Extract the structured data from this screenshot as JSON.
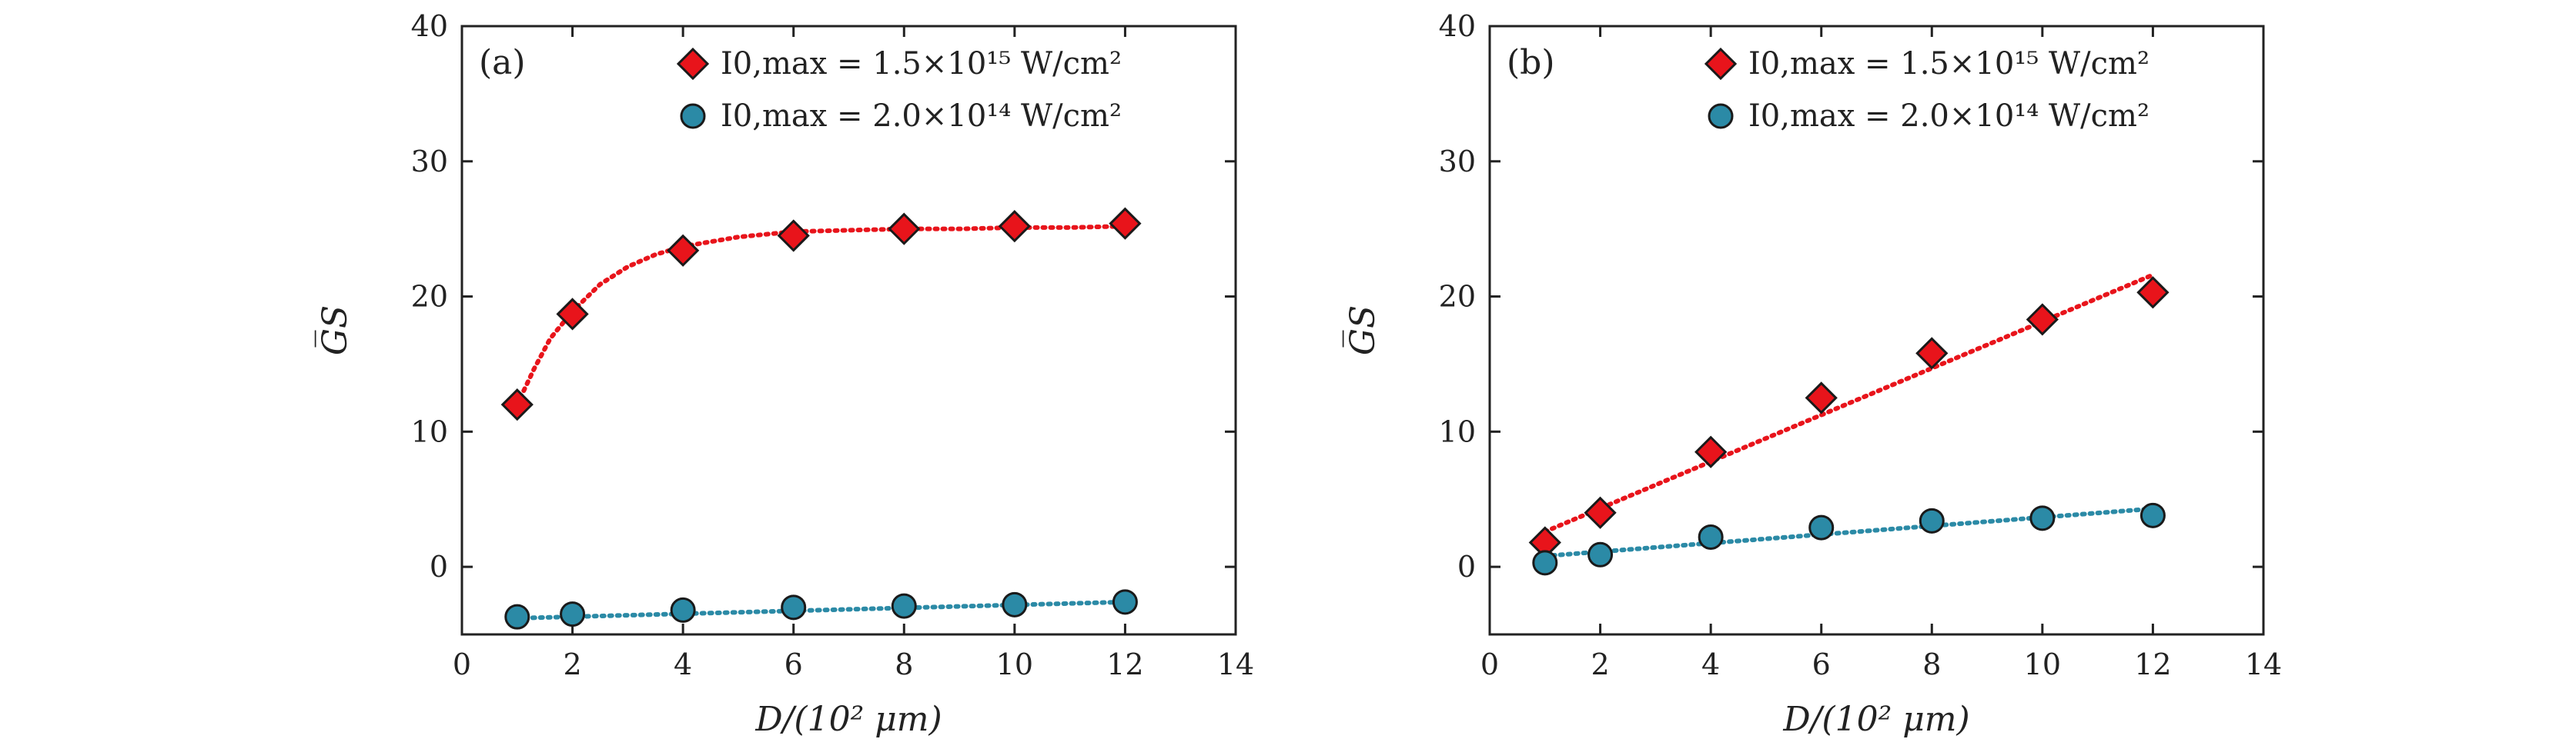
{
  "chart_data": [
    {
      "type": "scatter",
      "panel_label": "(a)",
      "xlabel": "D/(10² μm)",
      "ylabel": "G̅S",
      "xlim": [
        0,
        14
      ],
      "ylim": [
        -5,
        40
      ],
      "xticks": [
        0,
        2,
        4,
        6,
        8,
        10,
        12,
        14
      ],
      "yticks": [
        0,
        10,
        20,
        30,
        40
      ],
      "legend_position": "top-right",
      "series": [
        {
          "name": "I0,max = 1.5×10^15 W/cm^2",
          "legend_label": "I0,max = 1.5×10¹⁵ W/cm²",
          "marker": "diamond",
          "color": "#e8141b",
          "fit_color": "#e8141b",
          "x": [
            1,
            2,
            4,
            6,
            8,
            10,
            12
          ],
          "y": [
            12.0,
            18.7,
            23.4,
            24.5,
            25.0,
            25.2,
            25.4
          ],
          "fit": {
            "type": "saturating",
            "x": [
              1,
              1.3,
              1.6,
              2,
              2.5,
              3,
              3.5,
              4,
              5,
              6,
              7,
              8,
              9,
              10,
              11,
              12
            ],
            "y": [
              12.0,
              14.6,
              16.9,
              18.9,
              20.9,
              22.2,
              23.1,
              23.7,
              24.4,
              24.8,
              24.9,
              25.0,
              25.0,
              25.1,
              25.1,
              25.2
            ]
          }
        },
        {
          "name": "I0,max = 2.0×10^14 W/cm^2",
          "legend_label": "I0,max = 2.0×10¹⁴ W/cm²",
          "marker": "circle",
          "color": "#2b8aa6",
          "fit_color": "#2b8aa6",
          "x": [
            1,
            2,
            4,
            6,
            8,
            10,
            12
          ],
          "y": [
            -3.7,
            -3.5,
            -3.2,
            -3.0,
            -2.9,
            -2.8,
            -2.6
          ],
          "fit": {
            "type": "linear",
            "x": [
              1,
              12
            ],
            "y": [
              -3.8,
              -2.6
            ]
          }
        }
      ]
    },
    {
      "type": "scatter",
      "panel_label": "(b)",
      "xlabel": "D/(10² μm)",
      "ylabel": "G̅S",
      "xlim": [
        0,
        14
      ],
      "ylim": [
        -5,
        40
      ],
      "xticks": [
        0,
        2,
        4,
        6,
        8,
        10,
        12,
        14
      ],
      "yticks": [
        0,
        10,
        20,
        30,
        40
      ],
      "legend_position": "top-right",
      "series": [
        {
          "name": "I0,max = 1.5×10^15 W/cm^2",
          "legend_label": "I0,max = 1.5×10¹⁵ W/cm²",
          "marker": "diamond",
          "color": "#e8141b",
          "fit_color": "#e8141b",
          "x": [
            1,
            2,
            4,
            6,
            8,
            10,
            12
          ],
          "y": [
            1.8,
            4.0,
            8.5,
            12.5,
            15.8,
            18.3,
            20.3
          ],
          "fit": {
            "type": "linear",
            "x": [
              1,
              12
            ],
            "y": [
              2.6,
              21.6
            ]
          }
        },
        {
          "name": "I0,max = 2.0×10^14 W/cm^2",
          "legend_label": "I0,max = 2.0×10¹⁴ W/cm²",
          "marker": "circle",
          "color": "#2b8aa6",
          "fit_color": "#2b8aa6",
          "x": [
            1,
            2,
            4,
            6,
            8,
            10,
            12
          ],
          "y": [
            0.3,
            0.9,
            2.2,
            2.9,
            3.4,
            3.6,
            3.8
          ],
          "fit": {
            "type": "linear",
            "x": [
              1,
              12
            ],
            "y": [
              0.8,
              4.3
            ]
          }
        }
      ]
    }
  ]
}
